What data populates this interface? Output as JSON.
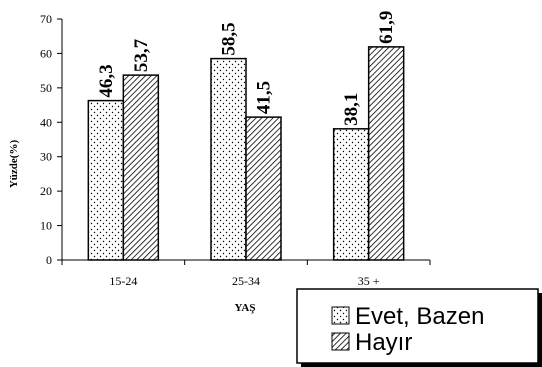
{
  "chart_data": {
    "type": "bar",
    "categories": [
      "15-24",
      "25-34",
      "35  +"
    ],
    "series": [
      {
        "name": "Evet,  Bazen",
        "values": [
          46.3,
          58.5,
          38.1
        ],
        "data_labels": [
          "46,3",
          "58,5",
          "38,1"
        ],
        "pattern": "dots"
      },
      {
        "name": "Hayır",
        "values": [
          53.7,
          41.5,
          61.9
        ],
        "data_labels": [
          "53,7",
          "41,5",
          "61,9"
        ],
        "pattern": "diagonal-hatch"
      }
    ],
    "xlabel": "YAŞ",
    "ylabel": "Yüzde(%)",
    "ylim": [
      0,
      70
    ],
    "yticks": [
      "0",
      "10",
      "20",
      "30",
      "40",
      "50",
      "60",
      "70"
    ],
    "grid": false,
    "legend_position": "bottom-right"
  }
}
